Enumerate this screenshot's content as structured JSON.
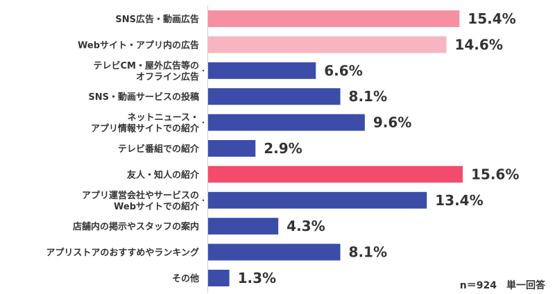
{
  "chart_data": {
    "type": "bar",
    "orientation": "horizontal",
    "title": "",
    "xlabel": "",
    "ylabel": "",
    "xlim": [
      0,
      16
    ],
    "grid": false,
    "categories": [
      [
        "SNS広告・動画広告"
      ],
      [
        "Webサイト・アプリ内の広告"
      ],
      [
        "テレビCM・屋外広告等の",
        "オフライン広告"
      ],
      [
        "SNS・動画サービスの投稿"
      ],
      [
        "ネットニュース・",
        "アプリ情報サイトでの紹介"
      ],
      [
        "テレビ番組での紹介"
      ],
      [
        "友人・知人の紹介"
      ],
      [
        "アプリ運営会社やサービスの",
        "Webサイトでの紹介"
      ],
      [
        "店舗内の掲示やスタッフの案内"
      ],
      [
        "アプリストアのおすすめやランキング"
      ],
      [
        "その他"
      ]
    ],
    "values": [
      15.4,
      14.6,
      6.6,
      8.1,
      9.6,
      2.9,
      15.6,
      13.4,
      4.3,
      8.1,
      1.3
    ],
    "value_labels": [
      "15.4%",
      "14.6%",
      "6.6%",
      "8.1%",
      "9.6%",
      "2.9%",
      "15.6%",
      "13.4%",
      "4.3%",
      "8.1%",
      "1.3%"
    ],
    "colors": [
      "#f58fa1",
      "#f8b5c1",
      "#3b4da8",
      "#3b4da8",
      "#3b4da8",
      "#3b4da8",
      "#f24b6b",
      "#3b4da8",
      "#3b4da8",
      "#3b4da8",
      "#3b4da8"
    ],
    "annotation": "n＝924　単一回答"
  }
}
